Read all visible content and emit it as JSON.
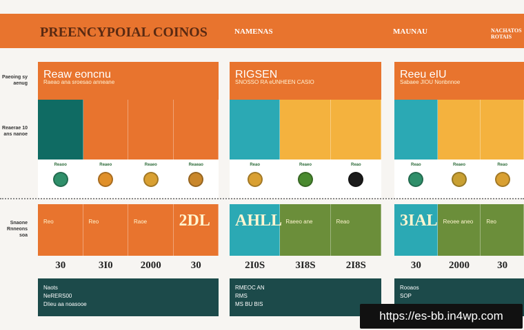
{
  "header": {
    "title": "PREENCYPOIAL COINOS",
    "labels": [
      "NAMENAS",
      "MAUNAU",
      "NACHATOS ROTAIS"
    ]
  },
  "side_labels": [
    "Paeoing sy aenug",
    "Reaerae 10 ans nanoe",
    "Snaone Rnneons soa"
  ],
  "panels": [
    {
      "title": "Reaw eoncnu",
      "subtitle": "Raeao ana sroesao anneane",
      "top_colors": [
        "#0f6b63",
        "#e8742e",
        "#e8742e",
        "#e8742e"
      ],
      "coins": [
        {
          "label": "Reaoo",
          "color": "#2f8f6a"
        },
        {
          "label": "Reaeo",
          "color": "#e0902a"
        },
        {
          "label": "Reaeo",
          "color": "#d9a032"
        },
        {
          "label": "Reaeao",
          "color": "#c9872b"
        }
      ],
      "mid_colors": [
        "#e8742e",
        "#e8742e",
        "#e8742e",
        "#e8742e"
      ],
      "mid_texts": [
        "Reo",
        "Reo",
        "Raoe",
        "2DL"
      ],
      "numbers": [
        "30",
        "3I0",
        "2000",
        "30"
      ],
      "footer": [
        "Naots",
        "NeRERS00",
        "DIieu aa noasooe"
      ]
    },
    {
      "title": "RIGSEN",
      "subtitle": "SNOSSO RA eUNHEEN CASIO",
      "top_colors": [
        "#2ba9b4",
        "#f4b23e",
        "#f4b23e"
      ],
      "coins": [
        {
          "label": "Reao",
          "color": "#d9a032"
        },
        {
          "label": "Reaeo",
          "color": "#4a8a2f"
        },
        {
          "label": "Reao",
          "color": "#1b1b1b"
        }
      ],
      "mid_colors": [
        "#2ba9b4",
        "#6b8e3a",
        "#6b8e3a"
      ],
      "mid_texts": [
        "AHLL",
        "Raeeo ane",
        "Reao"
      ],
      "numbers": [
        "2I0S",
        "3I8S",
        "2I8S"
      ],
      "footer": [
        "RMEOC AN",
        "RMS",
        "MS BU BIS"
      ]
    },
    {
      "title": "Reeu eIU",
      "subtitle": "Sabaee JIOU Nonbnnoe",
      "top_colors": [
        "#2ba9b4",
        "#f4b23e",
        "#f4b23e"
      ],
      "coins": [
        {
          "label": "Reao",
          "color": "#2f8f6a"
        },
        {
          "label": "Reaeo",
          "color": "#c9a032"
        },
        {
          "label": "Reao",
          "color": "#d9a032"
        }
      ],
      "mid_colors": [
        "#2ba9b4",
        "#6b8e3a",
        "#6b8e3a"
      ],
      "mid_texts": [
        "3IAL",
        "Reoee aneo",
        "Reo"
      ],
      "numbers": [
        "30",
        "2000",
        "30"
      ],
      "footer": [
        "Rooaos",
        "SOP"
      ]
    }
  ],
  "watermark": "https://es-bb.in4wp.com"
}
